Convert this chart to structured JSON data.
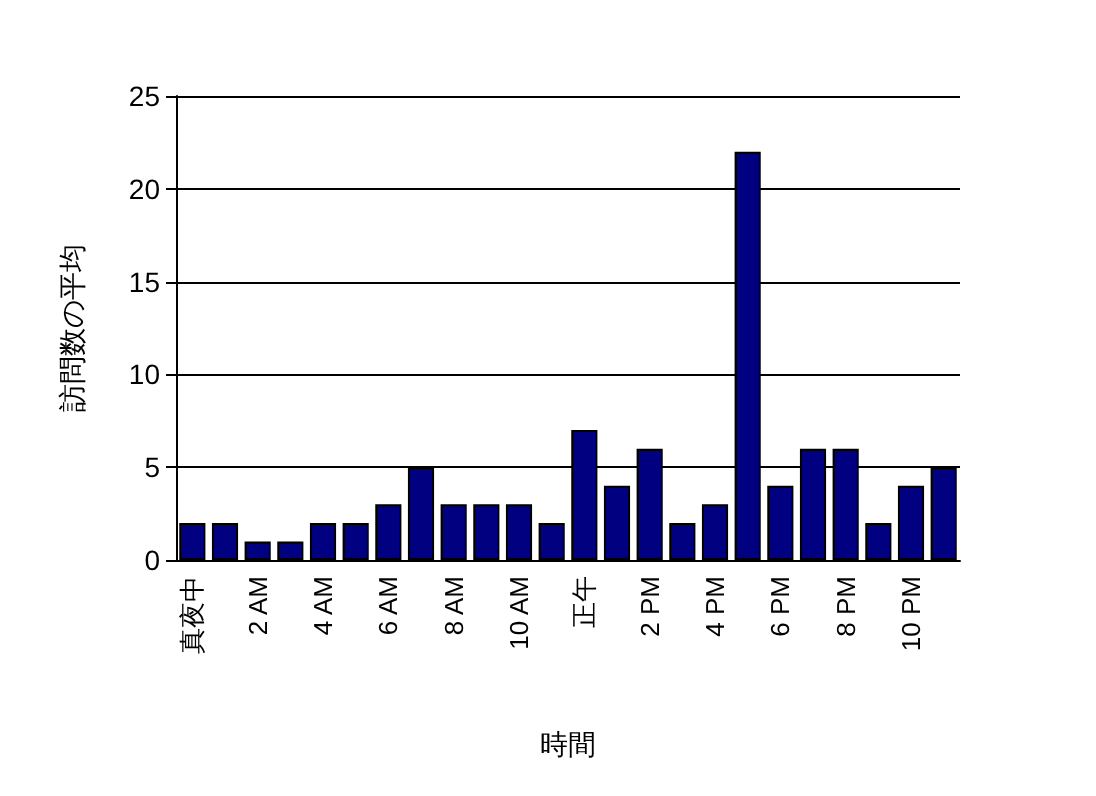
{
  "chart_data": {
    "type": "bar",
    "xlabel": "時間",
    "ylabel": "訪問数の平均",
    "categories": [
      "真夜中",
      null,
      "2 AM",
      null,
      "4 AM",
      null,
      "6 AM",
      null,
      "8 AM",
      null,
      "10 AM",
      null,
      "正午",
      null,
      "2 PM",
      null,
      "4 PM",
      null,
      "6 PM",
      null,
      "8 PM",
      null,
      "10 PM",
      null
    ],
    "values": [
      2,
      2,
      1,
      1,
      2,
      2,
      3,
      5,
      3,
      3,
      3,
      2,
      7,
      4,
      6,
      2,
      3,
      22,
      4,
      6,
      6,
      2,
      4,
      5
    ],
    "color": "#000080",
    "ylim": [
      0,
      25
    ],
    "yticks": [
      0,
      5,
      10,
      15,
      20,
      25
    ],
    "grid": "y"
  }
}
